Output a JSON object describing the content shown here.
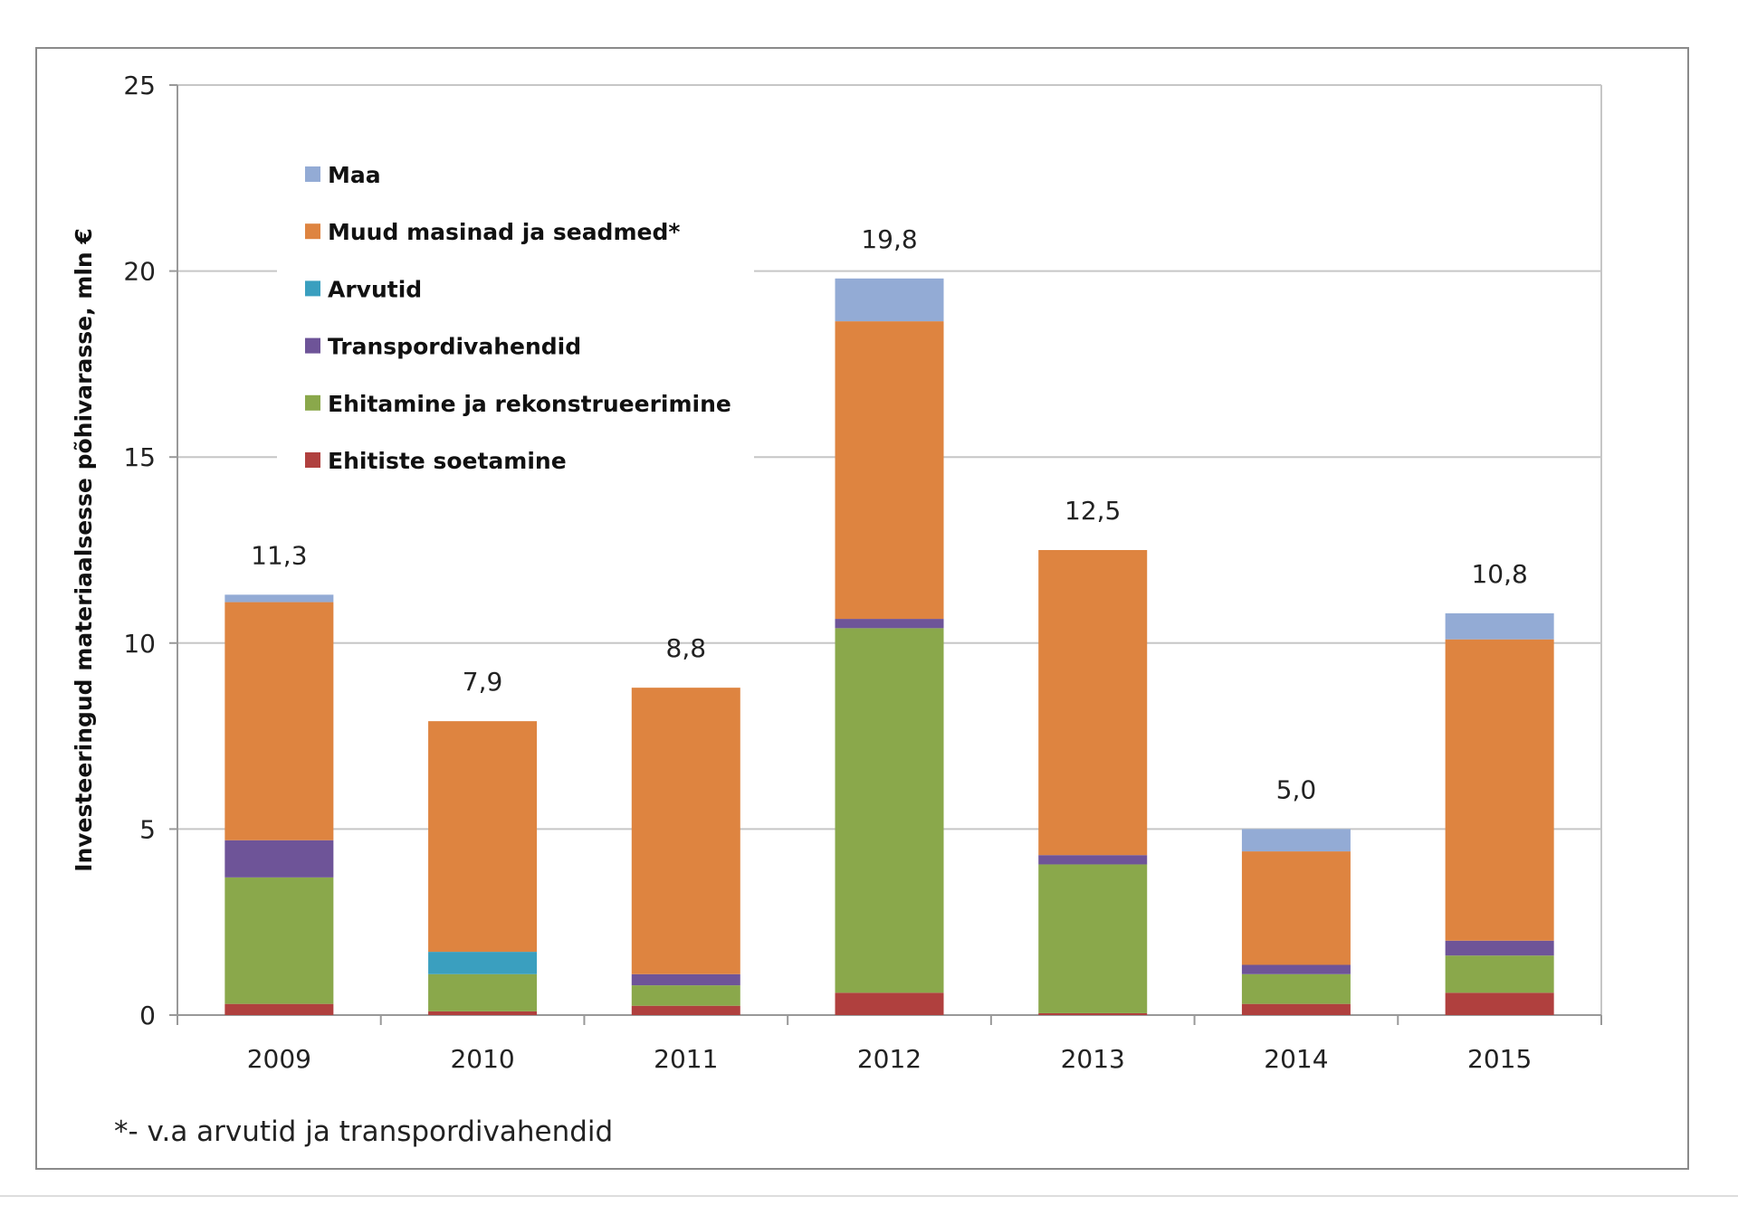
{
  "chart_data": {
    "type": "bar",
    "stacked": true,
    "title": "",
    "xlabel": "",
    "ylabel": "Investeeringud materiaalsesse põhivarasse, mln €",
    "ylim": [
      0,
      25
    ],
    "yticks": [
      "0",
      "5",
      "10",
      "15",
      "20",
      "25"
    ],
    "grid": true,
    "legend_placement": "top-left",
    "categories": [
      "2009",
      "2010",
      "2011",
      "2012",
      "2013",
      "2014",
      "2015"
    ],
    "series": [
      {
        "name": "Ehitiste soetamine",
        "color": "#b0403e",
        "values": [
          0.3,
          0.1,
          0.25,
          0.6,
          0.05,
          0.3,
          0.6
        ]
      },
      {
        "name": "Ehitamine ja rekonstrueerimine",
        "color": "#8aa84b",
        "values": [
          3.4,
          1.0,
          0.55,
          9.8,
          4.0,
          0.8,
          1.0
        ]
      },
      {
        "name": "Transpordivahendid",
        "color": "#6e5498",
        "values": [
          1.0,
          0.0,
          0.3,
          0.25,
          0.25,
          0.25,
          0.4
        ]
      },
      {
        "name": "Arvutid",
        "color": "#3a9fbf",
        "values": [
          0.0,
          0.6,
          0.0,
          0.0,
          0.0,
          0.0,
          0.0
        ]
      },
      {
        "name": "Muud masinad ja seadmed*",
        "color": "#de8440",
        "values": [
          6.4,
          6.2,
          7.7,
          8.0,
          8.2,
          3.05,
          8.1
        ]
      },
      {
        "name": "Maa",
        "color": "#93abd5",
        "values": [
          0.2,
          0.0,
          0.0,
          1.15,
          0.0,
          0.6,
          0.7
        ]
      }
    ],
    "totals": [
      "11,3",
      "7,9",
      "8,8",
      "19,8",
      "12,5",
      "5,0",
      "10,8"
    ],
    "legend_order": [
      "Maa",
      "Muud masinad ja seadmed*",
      "Arvutid",
      "Transpordivahendid",
      "Ehitamine ja rekonstrueerimine",
      "Ehitiste soetamine"
    ],
    "footnote": "*- v.a arvutid ja transpordivahendid"
  }
}
